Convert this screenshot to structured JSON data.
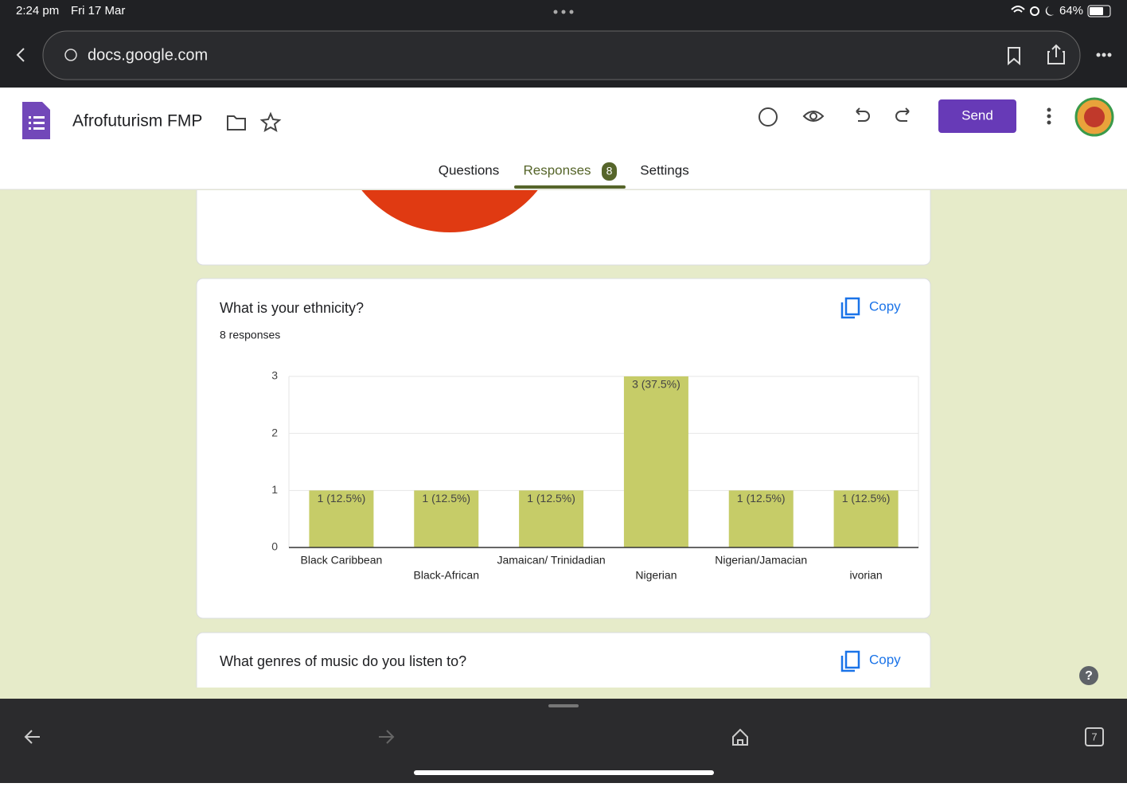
{
  "status_bar": {
    "time": "2:24 pm",
    "date": "Fri 17 Mar",
    "battery": "64%"
  },
  "browser": {
    "url": "docs.google.com",
    "tab_count": 7
  },
  "header": {
    "title": "Afrofuturism FMP",
    "send": "Send",
    "tabs": [
      "Questions",
      "Responses",
      "Settings"
    ],
    "responses_badge": 8
  },
  "question": {
    "title": "What is your ethnicity?",
    "responses": "8 responses",
    "copy": "Copy"
  },
  "next_question": {
    "title": "What genres of music do you listen to?",
    "copy": "Copy"
  },
  "chart_data": {
    "type": "bar",
    "categories": [
      "Black Caribbean",
      "Black-African",
      "Jamaican/ Trinidadian",
      "Nigerian",
      "Nigerian/Jamacian",
      "ivorian"
    ],
    "values": [
      1,
      1,
      1,
      3,
      1,
      1
    ],
    "value_labels": [
      "1 (12.5%)",
      "1 (12.5%)",
      "1 (12.5%)",
      "3 (37.5%)",
      "1 (12.5%)",
      "1 (12.5%)"
    ],
    "color": "#c6cc68",
    "ylim": [
      0,
      3
    ],
    "yticks": [
      0,
      1,
      2,
      3
    ],
    "grid": true
  }
}
